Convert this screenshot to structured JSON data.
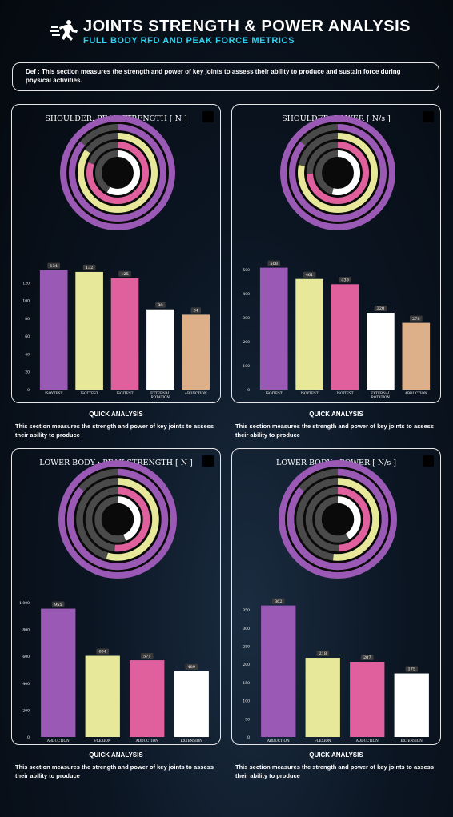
{
  "header": {
    "title": "JOINTS STRENGTH & POWER ANALYSIS",
    "subtitle": "FULL BODY RFD AND PEAK FORCE METRICS"
  },
  "definition": "Def : This section measures the strength and power of key joints to assess their ability to produce and sustain force during physical activities.",
  "colors": [
    "#9b59b6",
    "#e8e89a",
    "#e0609e",
    "#ffffff",
    "#deb08a"
  ],
  "panels": [
    {
      "id": "shoulder-strength",
      "title": "SHOULDER: PEAK STRENGTH [ N ]",
      "quick_title": "QUICK ANALYSIS",
      "quick_text": "This section measures the strength and power of key joints to assess their ability to produce",
      "chart_data": {
        "type": "bar",
        "categories": [
          "ISOYTEST",
          "ISOTTEST",
          "ISOITEST",
          "EXTERNAL ROTATION",
          "ABDUCTION"
        ],
        "values": [
          134,
          132,
          125,
          90,
          84
        ],
        "ylim": [
          0,
          140
        ],
        "yticks": [
          0,
          20,
          40,
          60,
          80,
          100,
          120
        ],
        "colors": [
          "#9b59b6",
          "#e8e89a",
          "#e0609e",
          "#ffffff",
          "#deb08a"
        ]
      }
    },
    {
      "id": "shoulder-power",
      "title": "SHOULDER: POWER [ N/s ]",
      "quick_title": "QUICK ANALYSIS",
      "quick_text": "This section measures the strength and power of key joints to assess their ability to produce",
      "chart_data": {
        "type": "bar",
        "categories": [
          "ISOITEST",
          "ISOYTEST",
          "ISOITEST",
          "EXTERNAL ROTATION",
          "ABDUCTION"
        ],
        "values": [
          508,
          461,
          439,
          320,
          278
        ],
        "ylim": [
          0,
          520
        ],
        "yticks": [
          0,
          100,
          200,
          300,
          400,
          500
        ],
        "colors": [
          "#9b59b6",
          "#e8e89a",
          "#e0609e",
          "#ffffff",
          "#deb08a"
        ]
      }
    },
    {
      "id": "lower-strength",
      "title": "LOWER BODY : PEAK STRENGTH [ N ]",
      "quick_title": "QUICK ANALYSIS",
      "quick_text": "This section measures the strength and power of key joints to assess their ability to produce",
      "chart_data": {
        "type": "bar",
        "categories": [
          "ABDUCTION",
          "FLEXION",
          "ADDUCTION",
          "EXTENSION"
        ],
        "values": [
          955,
          604,
          571,
          489
        ],
        "value_labels": [
          "955",
          "604",
          "571",
          "489"
        ],
        "ylim": [
          0,
          1000
        ],
        "yticks": [
          0,
          200,
          400,
          600,
          800,
          1000
        ],
        "ytick_labels": [
          "0",
          "200",
          "400",
          "600",
          "800",
          "1,000"
        ],
        "colors": [
          "#9b59b6",
          "#e8e89a",
          "#e0609e",
          "#ffffff"
        ]
      }
    },
    {
      "id": "lower-power",
      "title": "LOWER BODY : POWER [ N/s ]",
      "quick_title": "QUICK ANALYSIS",
      "quick_text": "This section measures the strength and power of key joints to assess their ability to produce",
      "chart_data": {
        "type": "bar",
        "categories": [
          "ABDUCTION",
          "FLEXION",
          "ADDUCTION",
          "EXTENSION"
        ],
        "values": [
          362,
          218,
          207,
          175
        ],
        "ylim": [
          0,
          370
        ],
        "yticks": [
          0,
          50,
          100,
          150,
          200,
          250,
          300,
          350
        ],
        "colors": [
          "#9b59b6",
          "#e8e89a",
          "#e0609e",
          "#ffffff"
        ]
      }
    }
  ]
}
